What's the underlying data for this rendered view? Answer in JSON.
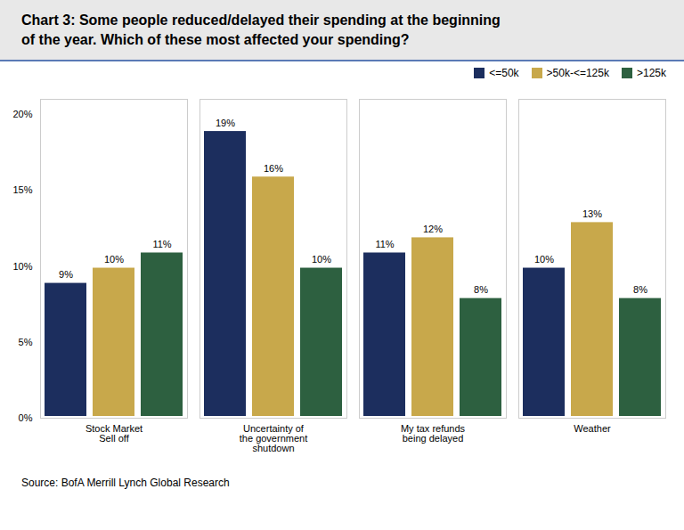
{
  "chart_data": {
    "type": "bar",
    "title": "Chart 3: Some people reduced/delayed their spending at the beginning\nof the year. Which of these most affected your spending?",
    "categories": [
      "Stock Market\nSell off",
      "Uncertainty of\nthe government\nshutdown",
      "My tax refunds\nbeing delayed",
      "Weather"
    ],
    "series": [
      {
        "name": "<=50k",
        "color": "#1c2e5e",
        "values": [
          9,
          19,
          11,
          10
        ],
        "value_labels": [
          "9%",
          "19%",
          "11%",
          "10%"
        ]
      },
      {
        "name": ">50k-<=125k",
        "color": "#c8a84b",
        "values": [
          10,
          16,
          12,
          13
        ],
        "value_labels": [
          "10%",
          "16%",
          "12%",
          "13%"
        ]
      },
      {
        "name": ">125k",
        "color": "#2d6040",
        "values": [
          11,
          10,
          8,
          8
        ],
        "value_labels": [
          "11%",
          "10%",
          "8%",
          "8%"
        ]
      }
    ],
    "ylim": [
      0,
      21
    ],
    "yticks": [
      {
        "value": 0,
        "label": "0%"
      },
      {
        "value": 5,
        "label": "5%"
      },
      {
        "value": 10,
        "label": "10%"
      },
      {
        "value": 15,
        "label": "15%"
      },
      {
        "value": 20,
        "label": "20%"
      }
    ],
    "grid": false,
    "legend": "upper right",
    "data_labels": true,
    "source": "Source: BofA Merrill Lynch Global Research"
  }
}
